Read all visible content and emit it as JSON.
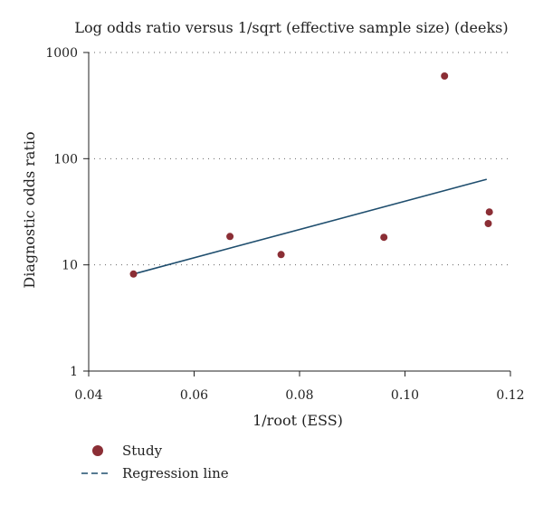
{
  "chart_data": {
    "type": "scatter",
    "title": "Log odds ratio versus 1/sqrt (effective sample size) (deeks)",
    "xlabel": "1/root (ESS)",
    "ylabel": "Diagnostic odds ratio",
    "xlim": [
      0.04,
      0.12
    ],
    "ylim": [
      1,
      1000
    ],
    "yscale": "log",
    "grid": "horizontal dotted",
    "legend_position": "bottom-left",
    "x_ticks": [
      "0.04",
      "0.06",
      "0.08",
      "0.10",
      "0.12"
    ],
    "x_tick_values": [
      0.04,
      0.06,
      0.08,
      0.1,
      0.12
    ],
    "y_ticks": [
      "1",
      "10",
      "100",
      "1000"
    ],
    "y_tick_values": [
      1,
      10,
      100,
      1000
    ],
    "series": [
      {
        "name": "Study",
        "kind": "points",
        "color": "#8b2e35",
        "points": [
          {
            "x": 0.0485,
            "y": 8.2
          },
          {
            "x": 0.0668,
            "y": 18.5
          },
          {
            "x": 0.0765,
            "y": 12.5
          },
          {
            "x": 0.096,
            "y": 18.2
          },
          {
            "x": 0.1075,
            "y": 600
          },
          {
            "x": 0.1158,
            "y": 24.5
          },
          {
            "x": 0.116,
            "y": 31.5
          }
        ]
      },
      {
        "name": "Regression line",
        "kind": "line",
        "color": "#1f4e6e",
        "points": [
          {
            "x": 0.0485,
            "y": 8.2
          },
          {
            "x": 0.1155,
            "y": 64
          }
        ]
      }
    ]
  }
}
